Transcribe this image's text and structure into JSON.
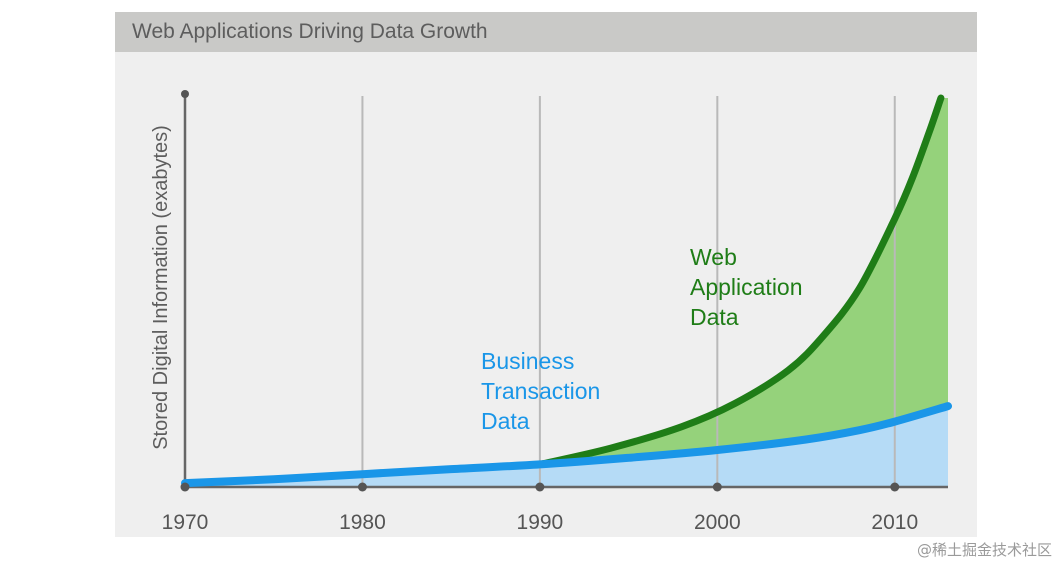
{
  "chart_data": {
    "type": "area",
    "title": "Web Applications Driving Data Growth",
    "xlabel": "",
    "ylabel": "Stored Digital Information (exabytes)",
    "xlim": [
      1970,
      2013
    ],
    "ylim": [
      0,
      100
    ],
    "x_ticks": [
      1970,
      1980,
      1990,
      2000,
      2010
    ],
    "tick_labels": [
      "1970",
      "1980",
      "1990",
      "2000",
      "2010"
    ],
    "grid": "vertical",
    "series": [
      {
        "name": "Business Transaction Data",
        "label_lines": [
          "Business",
          "Transaction",
          "Data"
        ],
        "color": "#1a96e8",
        "fill": "#b5dbf6",
        "x": [
          1970,
          1975,
          1980,
          1985,
          1990,
          1995,
          2000,
          2005,
          2008,
          2010,
          2013
        ],
        "values": [
          1.0,
          2.0,
          3.3,
          4.6,
          5.8,
          7.5,
          9.5,
          12.2,
          14.6,
          16.8,
          20.8
        ]
      },
      {
        "name": "Web Application Data",
        "label_lines": [
          "Web",
          "Application",
          "Data"
        ],
        "color": "#1f7d17",
        "fill": "#95d27b",
        "x": [
          1990,
          1994,
          1998,
          2001,
          2004,
          2006,
          2008,
          2010,
          2011,
          2012,
          2012.6
        ],
        "values": [
          5.8,
          10.0,
          15.5,
          21.5,
          30.0,
          39.0,
          51.0,
          69.0,
          79.5,
          92.0,
          100
        ]
      }
    ]
  },
  "watermark": "@稀土掘金技术社区"
}
